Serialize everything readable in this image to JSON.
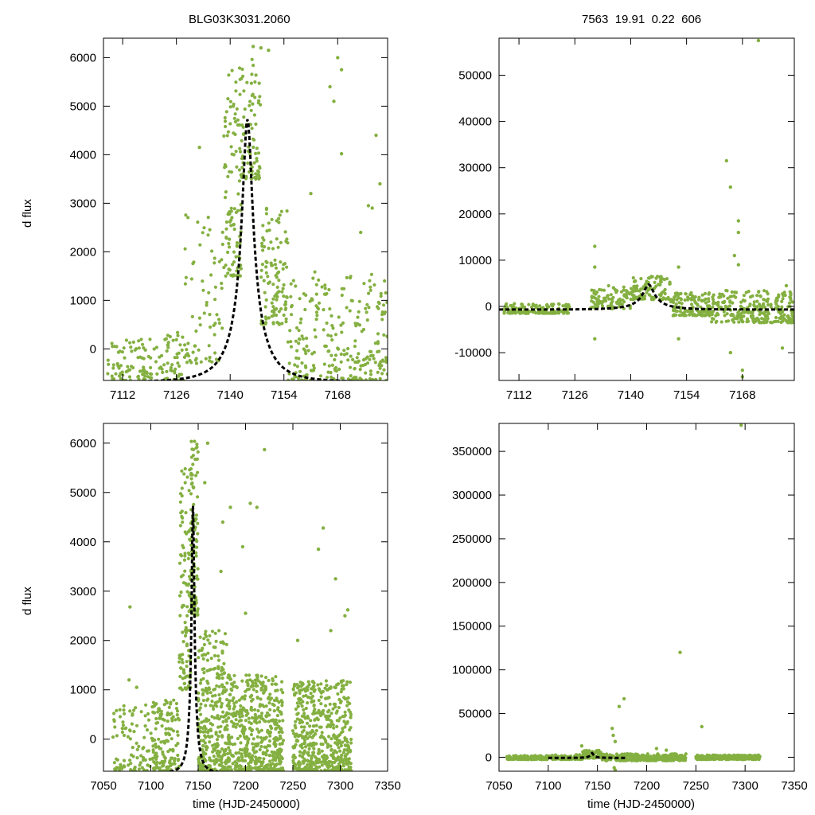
{
  "header": {
    "object_id": "BLG03K3031.2060",
    "stats": "7563  19.91  0.22  606"
  },
  "colors": {
    "points": "#84b041",
    "model": "#000000",
    "axis": "#000000"
  },
  "chart_data": [
    {
      "id": "top-left",
      "type": "scatter",
      "title": "",
      "xlabel": "",
      "ylabel": "d flux",
      "xlim": [
        7107,
        7181
      ],
      "ylim": [
        -650,
        6400
      ],
      "xticks": [
        7112,
        7126,
        7140,
        7154,
        7168
      ],
      "yticks": [
        0,
        1000,
        2000,
        3000,
        4000,
        5000,
        6000
      ],
      "model": {
        "t0": 7144.5,
        "u0": 0.15,
        "tE": 9,
        "amp": 5410,
        "base": -680
      },
      "scatter_groups": [
        {
          "x": [
            7108,
            7122
          ],
          "y": [
            -650,
            200
          ],
          "n": 90
        },
        {
          "x": [
            7122,
            7128
          ],
          "y": [
            -650,
            350
          ],
          "n": 45
        },
        {
          "x": [
            7128,
            7138
          ],
          "y": [
            -300,
            2800
          ],
          "n": 70
        },
        {
          "x": [
            7138,
            7143
          ],
          "y": [
            1500,
            5800
          ],
          "n": 110
        },
        {
          "x": [
            7143,
            7148
          ],
          "y": [
            3500,
            6100
          ],
          "n": 80
        },
        {
          "x": [
            7148,
            7155
          ],
          "y": [
            500,
            3000
          ],
          "n": 110
        },
        {
          "x": [
            7155,
            7181
          ],
          "y": [
            -650,
            1600
          ],
          "n": 260
        }
      ],
      "scatter_points": [
        {
          "x": 7132,
          "y": 4150
        },
        {
          "x": 7148,
          "y": 6200
        },
        {
          "x": 7150,
          "y": 6150
        },
        {
          "x": 7146,
          "y": 6230
        },
        {
          "x": 7167,
          "y": 5100
        },
        {
          "x": 7168,
          "y": 6000
        },
        {
          "x": 7169,
          "y": 5750
        },
        {
          "x": 7166,
          "y": 5400
        },
        {
          "x": 7178,
          "y": 4400
        },
        {
          "x": 7176,
          "y": 2950
        },
        {
          "x": 7179,
          "y": 3400
        },
        {
          "x": 7161,
          "y": 3200
        },
        {
          "x": 7169,
          "y": 4020
        },
        {
          "x": 7174,
          "y": 2400
        },
        {
          "x": 7177,
          "y": 2900
        }
      ]
    },
    {
      "id": "top-right",
      "type": "scatter",
      "title": "",
      "xlabel": "",
      "ylabel": "",
      "xlim": [
        7107,
        7181
      ],
      "ylim": [
        -16000,
        58000
      ],
      "xticks": [
        7112,
        7126,
        7140,
        7154,
        7168
      ],
      "yticks": [
        -10000,
        0,
        10000,
        20000,
        30000,
        40000,
        50000
      ],
      "model": {
        "t0": 7144.5,
        "u0": 0.15,
        "tE": 9,
        "amp": 5410,
        "base": -680
      },
      "scatter_groups": [
        {
          "x": [
            7108,
            7125
          ],
          "y": [
            -1500,
            600
          ],
          "n": 140
        },
        {
          "x": [
            7130,
            7140
          ],
          "y": [
            -500,
            4500
          ],
          "n": 90
        },
        {
          "x": [
            7140,
            7150
          ],
          "y": [
            1500,
            6500
          ],
          "n": 100
        },
        {
          "x": [
            7150,
            7160
          ],
          "y": [
            -2000,
            3000
          ],
          "n": 120
        },
        {
          "x": [
            7160,
            7181
          ],
          "y": [
            -3500,
            3500
          ],
          "n": 260
        }
      ],
      "scatter_points": [
        {
          "x": 7131,
          "y": 13000
        },
        {
          "x": 7131,
          "y": 8500
        },
        {
          "x": 7131,
          "y": -7000
        },
        {
          "x": 7152,
          "y": -7000
        },
        {
          "x": 7152,
          "y": 8500
        },
        {
          "x": 7164,
          "y": 31500
        },
        {
          "x": 7165,
          "y": 25800
        },
        {
          "x": 7167,
          "y": 18500
        },
        {
          "x": 7167,
          "y": 16000
        },
        {
          "x": 7167,
          "y": 9000
        },
        {
          "x": 7168,
          "y": -13800
        },
        {
          "x": 7168,
          "y": -15200
        },
        {
          "x": 7165,
          "y": -10000
        },
        {
          "x": 7172,
          "y": 57500
        },
        {
          "x": 7178,
          "y": -9000
        },
        {
          "x": 7179,
          "y": 4500
        },
        {
          "x": 7166,
          "y": 11000
        }
      ]
    },
    {
      "id": "bottom-left",
      "type": "scatter",
      "title": "",
      "xlabel": "time (HJD-2450000)",
      "ylabel": "d flux",
      "xlim": [
        7050,
        7350
      ],
      "ylim": [
        -650,
        6400
      ],
      "xticks": [
        7050,
        7100,
        7150,
        7200,
        7250,
        7300,
        7350
      ],
      "yticks": [
        0,
        1000,
        2000,
        3000,
        4000,
        5000,
        6000
      ],
      "model": {
        "t0": 7144.5,
        "u0": 0.15,
        "tE": 9,
        "amp": 5410,
        "base": -680,
        "xmin": 7100,
        "xmax": 7180
      },
      "scatter_groups": [
        {
          "x": [
            7060,
            7100
          ],
          "y": [
            -650,
            700
          ],
          "n": 90
        },
        {
          "x": [
            7100,
            7130
          ],
          "y": [
            -650,
            800
          ],
          "n": 150
        },
        {
          "x": [
            7130,
            7142
          ],
          "y": [
            1000,
            5500
          ],
          "n": 110
        },
        {
          "x": [
            7142,
            7150
          ],
          "y": [
            2500,
            6200
          ],
          "n": 110
        },
        {
          "x": [
            7150,
            7180
          ],
          "y": [
            -650,
            2200
          ],
          "n": 300
        },
        {
          "x": [
            7180,
            7240
          ],
          "y": [
            -650,
            1300
          ],
          "n": 520
        },
        {
          "x": [
            7250,
            7312
          ],
          "y": [
            -650,
            1200
          ],
          "n": 520
        }
      ],
      "scatter_points": [
        {
          "x": 7078,
          "y": 2680
        },
        {
          "x": 7077,
          "y": 1200
        },
        {
          "x": 7085,
          "y": 1050
        },
        {
          "x": 7160,
          "y": 6000
        },
        {
          "x": 7157,
          "y": 5200
        },
        {
          "x": 7176,
          "y": 4400
        },
        {
          "x": 7184,
          "y": 4700
        },
        {
          "x": 7205,
          "y": 4780
        },
        {
          "x": 7212,
          "y": 4700
        },
        {
          "x": 7220,
          "y": 5870
        },
        {
          "x": 7174,
          "y": 3400
        },
        {
          "x": 7197,
          "y": 3900
        },
        {
          "x": 7277,
          "y": 3850
        },
        {
          "x": 7282,
          "y": 4280
        },
        {
          "x": 7295,
          "y": 3250
        },
        {
          "x": 7308,
          "y": 2620
        },
        {
          "x": 7305,
          "y": 2500
        },
        {
          "x": 7290,
          "y": 2200
        },
        {
          "x": 7200,
          "y": 2550
        },
        {
          "x": 7255,
          "y": 2000
        }
      ]
    },
    {
      "id": "bottom-right",
      "type": "scatter",
      "title": "",
      "xlabel": "time (HJD-2450000)",
      "ylabel": "",
      "xlim": [
        7050,
        7350
      ],
      "ylim": [
        -16000,
        382000
      ],
      "xticks": [
        7050,
        7100,
        7150,
        7200,
        7250,
        7300,
        7350
      ],
      "yticks": [
        0,
        50000,
        100000,
        150000,
        200000,
        250000,
        300000,
        350000
      ],
      "model": {
        "t0": 7144.5,
        "u0": 0.15,
        "tE": 9,
        "amp": 5410,
        "base": -680,
        "xmin": 7100,
        "xmax": 7180
      },
      "scatter_groups": [
        {
          "x": [
            7058,
            7100
          ],
          "y": [
            -2500,
            2000
          ],
          "n": 160
        },
        {
          "x": [
            7100,
            7135
          ],
          "y": [
            -2500,
            3000
          ],
          "n": 90
        },
        {
          "x": [
            7135,
            7155
          ],
          "y": [
            -1000,
            8000
          ],
          "n": 90
        },
        {
          "x": [
            7155,
            7240
          ],
          "y": [
            -4000,
            4000
          ],
          "n": 260
        },
        {
          "x": [
            7250,
            7315
          ],
          "y": [
            -2500,
            2500
          ],
          "n": 260
        }
      ],
      "scatter_points": [
        {
          "x": 7177,
          "y": 67000
        },
        {
          "x": 7172,
          "y": 58000
        },
        {
          "x": 7165,
          "y": 33000
        },
        {
          "x": 7166,
          "y": 25000
        },
        {
          "x": 7168,
          "y": 18000
        },
        {
          "x": 7234,
          "y": 120000
        },
        {
          "x": 7256,
          "y": 35000
        },
        {
          "x": 7296,
          "y": 380000
        },
        {
          "x": 7134,
          "y": 13000
        },
        {
          "x": 7167,
          "y": -12000
        },
        {
          "x": 7168,
          "y": -14500
        },
        {
          "x": 7210,
          "y": 10000
        },
        {
          "x": 7220,
          "y": 8000
        }
      ]
    }
  ]
}
